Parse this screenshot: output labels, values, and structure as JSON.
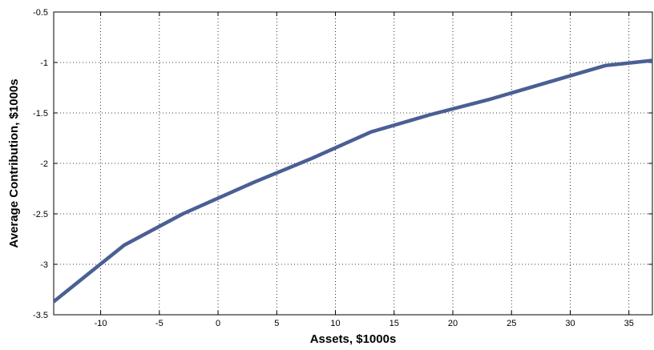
{
  "chart_data": {
    "type": "line",
    "title": "",
    "xlabel": "Assets, $1000s",
    "ylabel": "Average Contribution, $1000s",
    "xlim": [
      -14,
      37
    ],
    "ylim": [
      -3.5,
      -0.5
    ],
    "grid": true,
    "legend": "none",
    "x_ticks": [
      -10,
      -5,
      0,
      5,
      10,
      15,
      20,
      25,
      30,
      35
    ],
    "y_ticks": [
      -3.5,
      -3,
      -2.5,
      -2,
      -1.5,
      -1,
      -0.5
    ],
    "series": [
      {
        "color": "#4a5f94",
        "x": [
          -14,
          -8,
          -3,
          3,
          8,
          13,
          18,
          23,
          28,
          33,
          37
        ],
        "y": [
          -3.37,
          -2.81,
          -2.5,
          -2.19,
          -1.95,
          -1.69,
          -1.52,
          -1.37,
          -1.2,
          -1.03,
          -0.98
        ]
      }
    ]
  }
}
